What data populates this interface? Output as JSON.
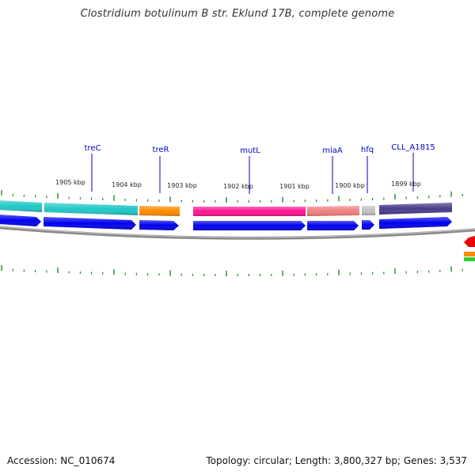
{
  "title": "Clostridium botulinum B str. Eklund 17B, complete genome",
  "footer": {
    "accession": "Accession: NC_010674",
    "summary": "Topology: circular; Length: 3,800,327 bp; Genes: 3,537"
  },
  "scale_labels": [
    "1905 kbp",
    "1904 kbp",
    "1903 kbp",
    "1902 kbp",
    "1901 kbp",
    "1900 kbp",
    "1899 kbp"
  ],
  "gene_labels": [
    "treC",
    "treR",
    "mutL",
    "miaA",
    "hfq",
    "CLL_A1815"
  ],
  "colors": {
    "cds": "#0000ee",
    "backbone": "#808080",
    "ticks": "#228b22",
    "label": "#0000cc",
    "feature_colors": [
      "#20c8c8",
      "#ff8c00",
      "#ff1493",
      "#f08080",
      "#c0c0c0",
      "#483d8b"
    ]
  }
}
